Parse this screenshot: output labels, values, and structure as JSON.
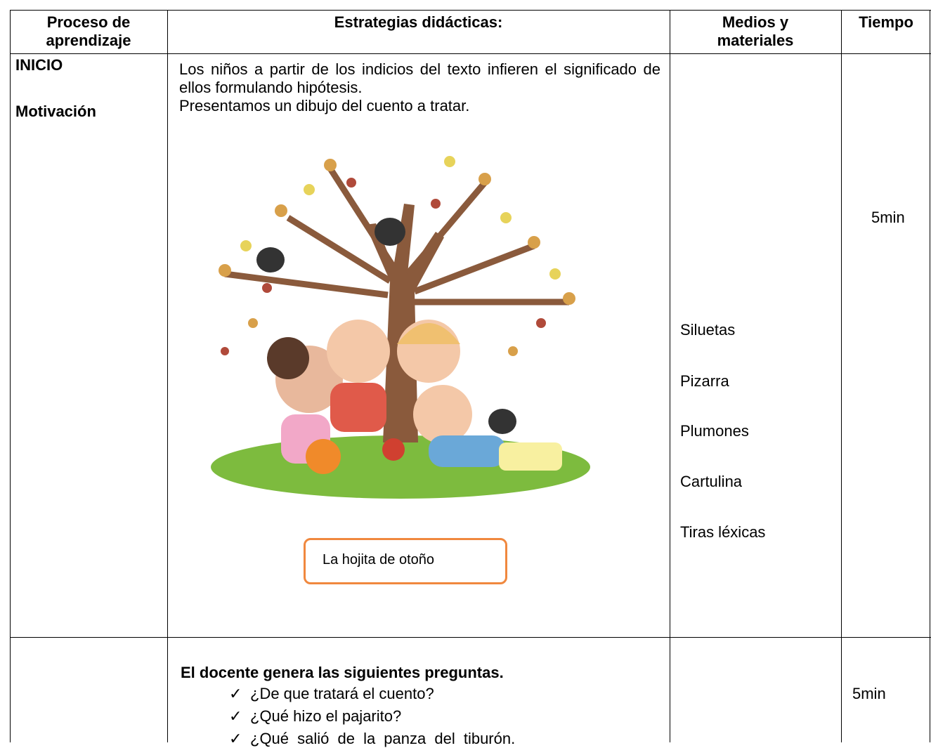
{
  "table": {
    "header": [
      [
        "Proceso de",
        "aprendizaje"
      ],
      [
        "Estrategias didácticas:"
      ],
      [
        "Medios y",
        "materiales"
      ],
      [
        "Tiempo"
      ]
    ],
    "rows": [
      {
        "stage": "INICIO",
        "substage": "Motivación",
        "strategy": [
          "Los niños a partir de los indicios del texto infieren el significado de ellos formulando hipótesis.",
          "Presentamos un dibujo del cuento a tratar."
        ],
        "image_caption": "La hojita de otoño",
        "materials": [
          "Siluetas",
          "Pizarra",
          "Plumones",
          "Cartulina",
          "Tiras léxicas"
        ],
        "time": "5min"
      },
      {
        "strategy_heading": "El docente genera las siguientes preguntas.",
        "questions": [
          "¿De que tratará el cuento?",
          "¿Qué hizo el pajarito?",
          "¿Qué salió de la panza del tiburón."
        ],
        "time": "5min"
      }
    ]
  }
}
